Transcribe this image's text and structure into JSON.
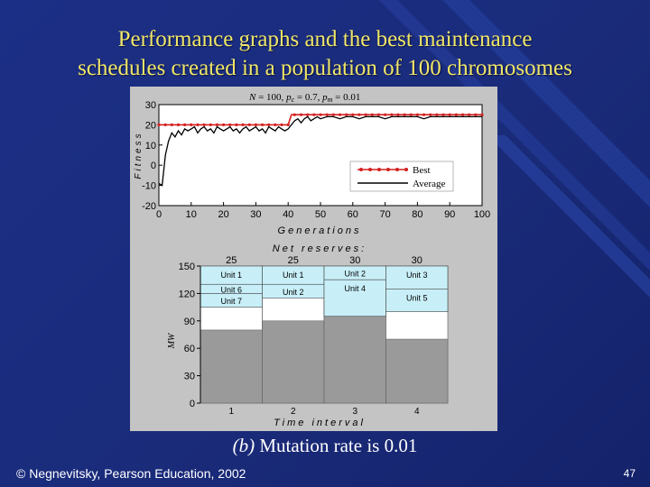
{
  "slide": {
    "title_line1": "Performance graphs and the best maintenance",
    "title_line2": "schedules created in a population of 100 chromosomes",
    "caption_label": "(b)",
    "caption_text": " Mutation rate is 0.01",
    "footer": "© Negnevitsky, Pearson Education, 2002",
    "page_number": "47"
  },
  "chart_data": [
    {
      "type": "line",
      "title": "N = 100, pc = 0.7, pm = 0.01",
      "title_parts": {
        "n": "N",
        "n_val": " = 100, ",
        "pc": "p",
        "pc_sub": "c",
        "pc_val": " = 0.7, ",
        "pm": "p",
        "pm_sub": "m",
        "pm_val": " = 0.01"
      },
      "xlabel": "Generations",
      "ylabel": "Fitness",
      "xlim": [
        0,
        100
      ],
      "ylim": [
        -20,
        30
      ],
      "xticks": [
        0,
        10,
        20,
        30,
        40,
        50,
        60,
        70,
        80,
        90,
        100
      ],
      "yticks": [
        -20,
        -10,
        0,
        10,
        20,
        30
      ],
      "legend_position": "right",
      "series": [
        {
          "name": "Best",
          "color": "#d42020",
          "marker": "dot",
          "x": [
            0,
            1,
            40,
            41,
            100
          ],
          "y": [
            20,
            20,
            20,
            25,
            25
          ]
        },
        {
          "name": "Average",
          "color": "#000000",
          "x": [
            0,
            1,
            2,
            3,
            4,
            5,
            6,
            7,
            8,
            9,
            10,
            11,
            12,
            13,
            14,
            15,
            16,
            17,
            18,
            19,
            20,
            21,
            22,
            23,
            24,
            25,
            26,
            27,
            28,
            29,
            30,
            31,
            32,
            33,
            34,
            35,
            36,
            37,
            38,
            39,
            40,
            41,
            42,
            43,
            44,
            45,
            46,
            47,
            48,
            49,
            50,
            52,
            54,
            56,
            58,
            60,
            62,
            64,
            66,
            68,
            70,
            72,
            74,
            76,
            78,
            80,
            82,
            84,
            86,
            88,
            90,
            92,
            94,
            96,
            98,
            100
          ],
          "y": [
            -9,
            -10,
            5,
            12,
            16,
            14,
            17,
            15,
            18,
            17,
            18,
            19,
            16,
            18,
            19,
            17,
            18,
            16,
            19,
            18,
            17,
            18,
            19,
            17,
            18,
            16,
            18,
            19,
            17,
            18,
            19,
            17,
            18,
            16,
            19,
            18,
            17,
            19,
            18,
            17,
            18,
            20,
            22,
            23,
            21,
            23,
            24,
            22,
            23,
            24,
            23,
            24,
            24,
            23,
            24,
            24,
            23,
            24,
            24,
            24,
            23,
            24,
            24,
            24,
            24,
            24,
            23,
            24,
            24,
            24,
            24,
            24,
            24,
            24,
            24,
            24
          ]
        }
      ]
    },
    {
      "type": "bar",
      "title": "Net reserves:",
      "net_reserves": [
        25,
        25,
        30,
        30
      ],
      "xlabel": "Time interval",
      "ylabel": "MW",
      "categories": [
        "1",
        "2",
        "3",
        "4"
      ],
      "ylim": [
        0,
        150
      ],
      "yticks": [
        0,
        30,
        60,
        90,
        120,
        150
      ],
      "base_load": [
        80,
        90,
        95,
        70
      ],
      "maintenance": [
        {
          "interval": 1,
          "label": "Unit 1",
          "from": 130,
          "to": 150
        },
        {
          "interval": 1,
          "label": "Unit 6",
          "from": 120,
          "to": 130
        },
        {
          "interval": 1,
          "label": "Unit 7",
          "from": 105,
          "to": 120
        },
        {
          "interval": 2,
          "label": "Unit 1",
          "from": 130,
          "to": 150
        },
        {
          "interval": 2,
          "label": "Unit 2",
          "from": 115,
          "to": 130
        },
        {
          "interval": 3,
          "label": "Unit 2",
          "from": 135,
          "to": 150
        },
        {
          "interval": 3,
          "label": "Unit 4",
          "from": 95,
          "to": 135
        },
        {
          "interval": 4,
          "label": "Unit 3",
          "from": 125,
          "to": 150
        },
        {
          "interval": 4,
          "label": "Unit 5",
          "from": 100,
          "to": 125
        }
      ],
      "colors": {
        "base": "#9a9a9a",
        "free": "#ffffff",
        "unit": "#c8eff8"
      }
    }
  ]
}
